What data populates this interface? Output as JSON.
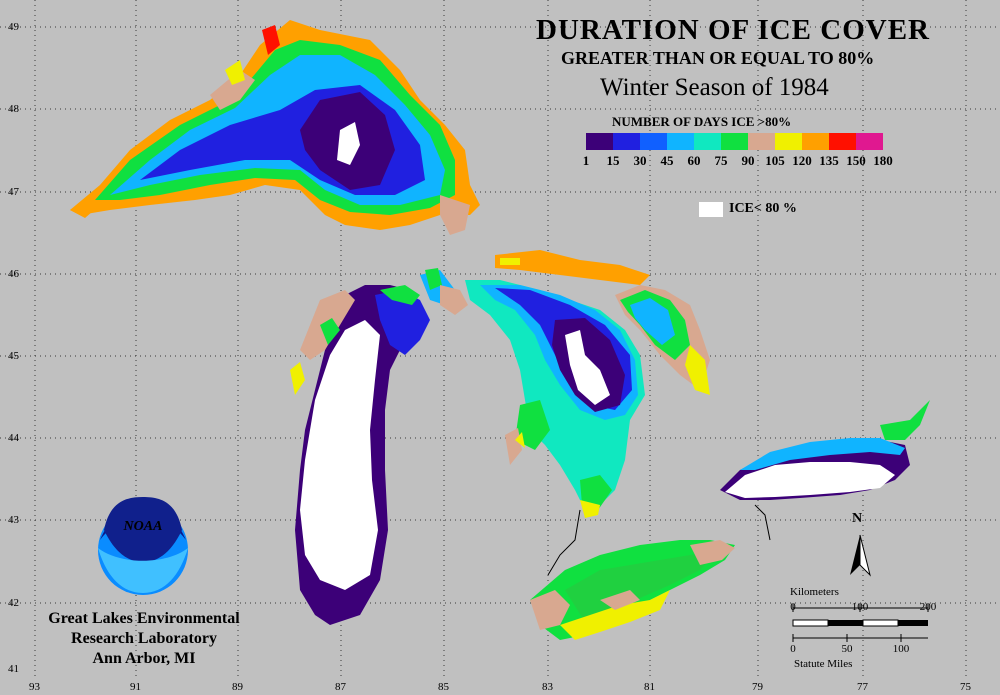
{
  "title": "DURATION OF ICE COVER",
  "subtitle": "GREATER THAN OR EQUAL TO 80%",
  "season": "Winter Season of 1984",
  "legend": {
    "title": "NUMBER OF DAYS ICE >80%",
    "colors": [
      "#3c0078",
      "#2020e0",
      "#1060ff",
      "#10b4ff",
      "#10e8c0",
      "#10e040",
      "#d8a890",
      "#f0f000",
      "#ffa000",
      "#ff1000",
      "#e01890"
    ],
    "ticks": [
      "1",
      "15",
      "30",
      "45",
      "60",
      "75",
      "90",
      "105",
      "120",
      "135",
      "150",
      "180"
    ],
    "white_label": "ICE< 80 %"
  },
  "lat_labels": [
    "49",
    "48",
    "47",
    "46",
    "45",
    "44",
    "43",
    "42",
    "41"
  ],
  "lon_labels": [
    "93",
    "91",
    "89",
    "87",
    "85",
    "83",
    "81",
    "79",
    "77",
    "75"
  ],
  "institution": [
    "Great Lakes Environmental",
    "Research Laboratory",
    "Ann Arbor, MI"
  ],
  "noaa_logo_text": "NOAA",
  "north": "N",
  "scale": {
    "km_title": "Kilometers",
    "km_ticks": [
      "0",
      "100",
      "200"
    ],
    "mi_ticks": [
      "0",
      "50",
      "100"
    ],
    "mi_title": "Statute Miles"
  }
}
